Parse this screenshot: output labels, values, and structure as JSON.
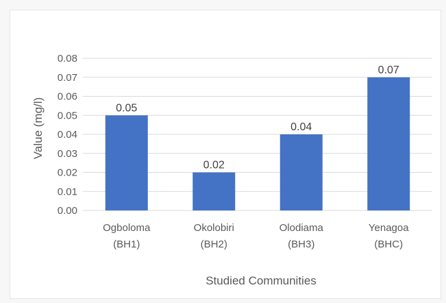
{
  "chart_data": {
    "type": "bar",
    "title": "",
    "xlabel": "Studied Communities",
    "ylabel": "Value (mg/l)",
    "categories": [
      [
        "Ogboloma",
        "(BH1)"
      ],
      [
        "Okolobiri",
        "(BH2)"
      ],
      [
        "Olodiama",
        "(BH3)"
      ],
      [
        "Yenagoa",
        "(BHC)"
      ]
    ],
    "values": [
      0.05,
      0.02,
      0.04,
      0.07
    ],
    "data_labels": [
      "0.05",
      "0.02",
      "0.04",
      "0.07"
    ],
    "ylim": [
      0,
      0.08
    ],
    "yticks": [
      "0.00",
      "0.01",
      "0.02",
      "0.03",
      "0.04",
      "0.05",
      "0.06",
      "0.07",
      "0.08"
    ],
    "grid": true,
    "legend": "none",
    "colors": {
      "bar": "#4472c4",
      "grid": "#d9d9d9",
      "text": "#595959"
    }
  }
}
